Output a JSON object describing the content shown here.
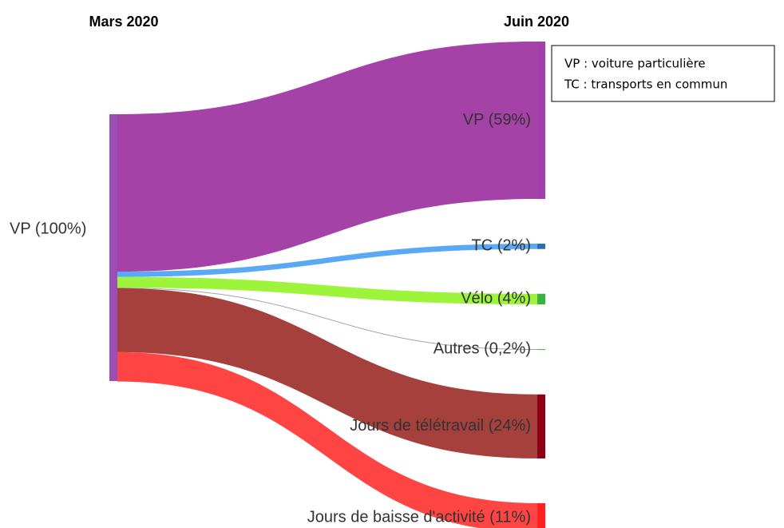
{
  "chart_data": {
    "type": "sankey",
    "headers": [
      "Mars 2020",
      "Juin 2020"
    ],
    "source": {
      "label": "VP (100%)",
      "value": 100,
      "color": "#9b4fb5"
    },
    "categories": [
      "VP",
      "TC",
      "Vélo",
      "Autres",
      "Jours de télétravail",
      "Jours de baisse d'activité"
    ],
    "values": [
      59,
      2,
      4,
      0.2,
      24,
      11
    ],
    "value_labels": [
      "VP (59%)",
      "TC (2%)",
      "Vélo (4%)",
      "Autres (0,2%)",
      "Jours de télétravail (24%)",
      "Jours de baisse d'activité (11%)"
    ],
    "colors": [
      "#a442a8",
      "#5aa9f5",
      "#9cf53a",
      "#999999",
      "#a5403d",
      "#ff4444"
    ],
    "node_colors": [
      "#a040a8",
      "#2a6fb8",
      "#3cb043",
      "#3cb043",
      "#8b0016",
      "#ff2020"
    ],
    "legend_lines": [
      "VP : voiture particulière",
      "TC : transports en commun"
    ]
  }
}
